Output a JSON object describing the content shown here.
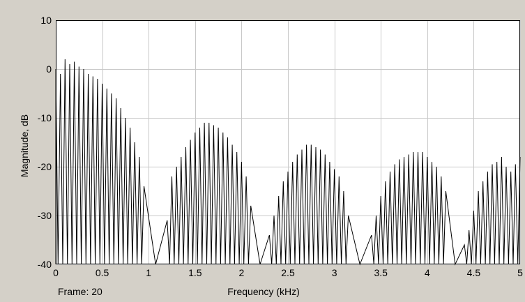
{
  "frame_text": "Frame: 20",
  "chart_data": {
    "type": "line",
    "title": "",
    "xlabel": "Frequency (kHz)",
    "ylabel": "Magnitude, dB",
    "xlim": [
      0,
      5
    ],
    "ylim": [
      -40,
      10
    ],
    "xticks": [
      0,
      0.5,
      1,
      1.5,
      2,
      2.5,
      3,
      3.5,
      4,
      4.5,
      5
    ],
    "xtick_labels": [
      "0",
      "0.5",
      "1",
      "1.5",
      "2",
      "2.5",
      "3",
      "3.5",
      "4",
      "4.5",
      "5"
    ],
    "yticks": [
      -40,
      -30,
      -20,
      -10,
      0,
      10
    ],
    "ytick_labels": [
      "-40",
      "-30",
      "-20",
      "-10",
      "0",
      "10"
    ],
    "grid": true,
    "colors": {
      "line": "#000000",
      "plot_bg": "#ffffff",
      "grid": "#c8c8c8",
      "window_bg": "#d4d0c8"
    },
    "series": [
      {
        "peaks": [
          [
            0.0,
            0
          ],
          [
            0.05,
            -1
          ],
          [
            0.1,
            2
          ],
          [
            0.15,
            1
          ],
          [
            0.2,
            1.5
          ],
          [
            0.25,
            0.5
          ],
          [
            0.3,
            0
          ],
          [
            0.35,
            -1
          ],
          [
            0.4,
            -1.5
          ],
          [
            0.45,
            -2
          ],
          [
            0.5,
            -3
          ],
          [
            0.55,
            -4
          ],
          [
            0.6,
            -5
          ],
          [
            0.65,
            -6
          ],
          [
            0.7,
            -8
          ],
          [
            0.75,
            -10
          ],
          [
            0.8,
            -12
          ],
          [
            0.85,
            -15
          ],
          [
            0.9,
            -18
          ],
          [
            0.95,
            -24
          ],
          [
            1.2,
            -31
          ],
          [
            1.25,
            -22
          ],
          [
            1.3,
            -20
          ],
          [
            1.35,
            -18
          ],
          [
            1.4,
            -16
          ],
          [
            1.45,
            -14.5
          ],
          [
            1.5,
            -13
          ],
          [
            1.55,
            -12
          ],
          [
            1.6,
            -11
          ],
          [
            1.65,
            -11
          ],
          [
            1.7,
            -11.5
          ],
          [
            1.75,
            -12
          ],
          [
            1.8,
            -13
          ],
          [
            1.85,
            -14
          ],
          [
            1.9,
            -15.5
          ],
          [
            1.95,
            -17
          ],
          [
            2.0,
            -19
          ],
          [
            2.05,
            -22
          ],
          [
            2.1,
            -28
          ],
          [
            2.3,
            -34
          ],
          [
            2.35,
            -30
          ],
          [
            2.4,
            -26
          ],
          [
            2.45,
            -23
          ],
          [
            2.5,
            -21
          ],
          [
            2.55,
            -19
          ],
          [
            2.6,
            -17.5
          ],
          [
            2.65,
            -16.5
          ],
          [
            2.7,
            -15.5
          ],
          [
            2.75,
            -15.5
          ],
          [
            2.8,
            -16
          ],
          [
            2.85,
            -16.5
          ],
          [
            2.9,
            -17.5
          ],
          [
            2.95,
            -19
          ],
          [
            3.0,
            -20.5
          ],
          [
            3.05,
            -22
          ],
          [
            3.1,
            -25
          ],
          [
            3.15,
            -30
          ],
          [
            3.4,
            -34
          ],
          [
            3.45,
            -30
          ],
          [
            3.5,
            -26
          ],
          [
            3.55,
            -23
          ],
          [
            3.6,
            -21
          ],
          [
            3.65,
            -19.5
          ],
          [
            3.7,
            -18.5
          ],
          [
            3.75,
            -18
          ],
          [
            3.8,
            -17.5
          ],
          [
            3.85,
            -17
          ],
          [
            3.9,
            -17
          ],
          [
            3.95,
            -17
          ],
          [
            4.0,
            -18
          ],
          [
            4.05,
            -19
          ],
          [
            4.1,
            -20
          ],
          [
            4.15,
            -22
          ],
          [
            4.2,
            -25
          ],
          [
            4.4,
            -36
          ],
          [
            4.45,
            -33
          ],
          [
            4.5,
            -29
          ],
          [
            4.55,
            -25
          ],
          [
            4.6,
            -23
          ],
          [
            4.65,
            -21
          ],
          [
            4.7,
            -19.5
          ],
          [
            4.75,
            -19
          ],
          [
            4.8,
            -18
          ],
          [
            4.85,
            -20
          ],
          [
            4.9,
            -21
          ],
          [
            4.95,
            -19.5
          ],
          [
            5.0,
            -18
          ]
        ]
      }
    ]
  }
}
